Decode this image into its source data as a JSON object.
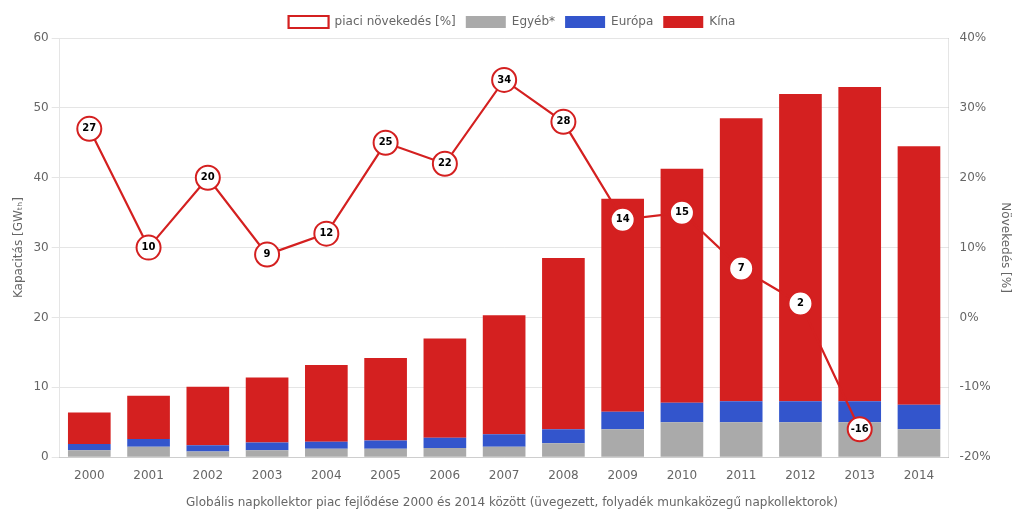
{
  "chart_data": {
    "type": "bar",
    "stacked": true,
    "title": "Globális napkollektor piac fejlődése 2000 és 2014 között (üvegezett, folyadék munkaközegű napkollektorok)",
    "ylabel": "Kapacitás [GWₜₕ]",
    "y2label": "Növekedés [%]",
    "categories": [
      "2000",
      "2001",
      "2002",
      "2003",
      "2004",
      "2005",
      "2006",
      "2007",
      "2008",
      "2009",
      "2010",
      "2011",
      "2012",
      "2013",
      "2014"
    ],
    "series": [
      {
        "name": "Egyéb*",
        "color": "#aaaaaa",
        "values": [
          1.0,
          1.5,
          0.8,
          1.0,
          1.2,
          1.2,
          1.3,
          1.5,
          2.0,
          4.0,
          5.0,
          5.0,
          5.0,
          5.0,
          4.0
        ]
      },
      {
        "name": "Európa",
        "color": "#3355cc",
        "values": [
          0.9,
          1.1,
          0.9,
          1.1,
          1.0,
          1.2,
          1.5,
          1.8,
          2.0,
          2.5,
          2.8,
          3.0,
          3.0,
          3.0,
          3.5
        ]
      },
      {
        "name": "Kína",
        "color": "#d42020",
        "values": [
          4.5,
          6.2,
          8.4,
          9.3,
          11.0,
          11.8,
          14.2,
          17.0,
          24.5,
          30.5,
          33.5,
          40.5,
          44.0,
          45.0,
          37.0
        ]
      },
      {
        "name": "piaci növekedés [%]",
        "type": "line",
        "axis": "y2",
        "color": "#d42020",
        "marker": "circle",
        "line_style": "solid",
        "data_labels": true,
        "values": [
          27,
          10,
          20,
          9,
          12,
          25,
          22,
          34,
          28,
          14,
          15,
          7,
          2,
          -16,
          null
        ]
      }
    ],
    "ylim": [
      0,
      60
    ],
    "yticks": [
      0,
      10,
      20,
      30,
      40,
      50,
      60
    ],
    "y2lim": [
      -20,
      40
    ],
    "y2ticks": [
      {
        "value": -20,
        "label": "-20%"
      },
      {
        "value": -10,
        "label": "-10%"
      },
      {
        "value": 0,
        "label": "0%"
      },
      {
        "value": 10,
        "label": "10%"
      },
      {
        "value": 20,
        "label": "20%"
      },
      {
        "value": 30,
        "label": "30%"
      },
      {
        "value": 40,
        "label": "40%"
      }
    ],
    "grid": true,
    "legend": "top"
  }
}
